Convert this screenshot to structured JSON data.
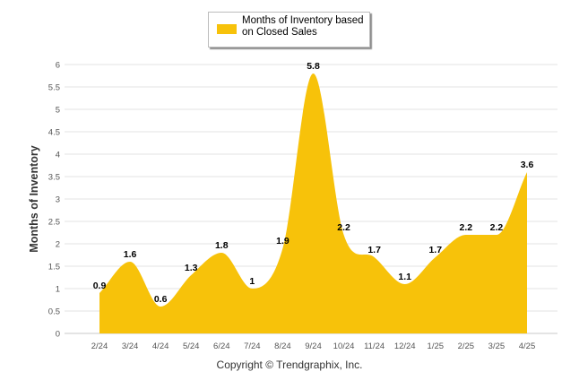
{
  "chart_data": {
    "type": "area",
    "categories": [
      "2/24",
      "3/24",
      "4/24",
      "5/24",
      "6/24",
      "7/24",
      "8/24",
      "9/24",
      "10/24",
      "11/24",
      "12/24",
      "1/25",
      "2/25",
      "3/25",
      "4/25"
    ],
    "series": [
      {
        "name": "Months of Inventory based on Closed Sales",
        "values": [
          0.9,
          1.6,
          0.6,
          1.3,
          1.8,
          1,
          1.9,
          5.8,
          2.2,
          1.7,
          1.1,
          1.7,
          2.2,
          2.2,
          3.6
        ]
      }
    ],
    "data_labels": [
      "0.9",
      "1.6",
      "0.6",
      "1.3",
      "1.8",
      "1",
      "1.9",
      "5.8",
      "2.2",
      "1.7",
      "1.1",
      "1.7",
      "2.2",
      "2.2",
      "3.6"
    ],
    "ylabel": "Months of Inventory",
    "xlabel": "",
    "ylim": [
      0,
      6
    ],
    "yticks": [
      "0",
      "0.5",
      "1",
      "1.5",
      "2",
      "2.5",
      "3",
      "3.5",
      "4",
      "4.5",
      "5",
      "5.5",
      "6"
    ],
    "grid": true,
    "legend_position": "top-center",
    "fill_color": "#F7C20A",
    "grid_color": "#e3e3e3"
  },
  "legend": {
    "label": "Months of Inventory based on Closed Sales"
  },
  "footer": {
    "copyright": "Copyright © Trendgraphix, Inc."
  }
}
